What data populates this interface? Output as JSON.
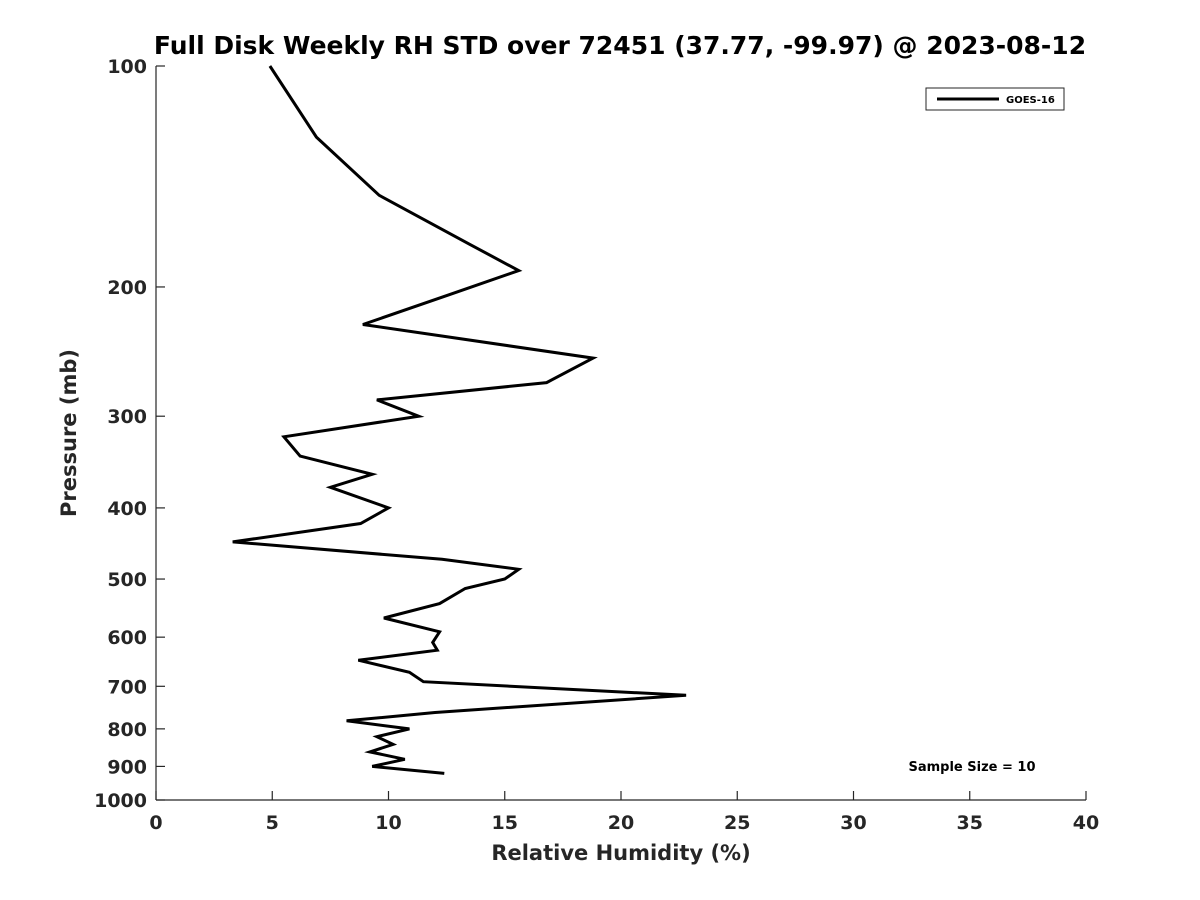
{
  "chart_data": {
    "type": "line",
    "title": "Full Disk Weekly RH STD over 72451 (37.77, -99.97) @ 2023-08-12",
    "xlabel": "Relative Humidity (%)",
    "ylabel": "Pressure (mb)",
    "xlim": [
      0,
      40
    ],
    "ylim": [
      100,
      1000
    ],
    "yscale": "log",
    "y_reversed": true,
    "grid": false,
    "legend_position": "top-right",
    "x_ticks": [
      "0",
      "5",
      "10",
      "15",
      "20",
      "25",
      "30",
      "35",
      "40"
    ],
    "y_ticks": [
      "100",
      "200",
      "300",
      "400",
      "500",
      "600",
      "700",
      "800",
      "900",
      "1000"
    ],
    "annotation": "Sample Size = 10",
    "series": [
      {
        "name": "GOES-16",
        "color": "#000000",
        "points": [
          [
            4.9,
            100
          ],
          [
            6.9,
            125
          ],
          [
            9.6,
            150
          ],
          [
            13.5,
            175
          ],
          [
            15.6,
            190
          ],
          [
            12.6,
            205
          ],
          [
            8.9,
            225
          ],
          [
            18.8,
            250
          ],
          [
            16.8,
            270
          ],
          [
            9.5,
            285
          ],
          [
            11.3,
            300
          ],
          [
            5.5,
            320
          ],
          [
            6.2,
            340
          ],
          [
            9.3,
            360
          ],
          [
            7.5,
            375
          ],
          [
            10.0,
            400
          ],
          [
            8.8,
            420
          ],
          [
            3.3,
            445
          ],
          [
            12.3,
            470
          ],
          [
            15.6,
            485
          ],
          [
            15.0,
            500
          ],
          [
            13.3,
            515
          ],
          [
            12.2,
            540
          ],
          [
            9.8,
            565
          ],
          [
            12.2,
            590
          ],
          [
            11.9,
            610
          ],
          [
            12.1,
            625
          ],
          [
            8.7,
            645
          ],
          [
            10.9,
            670
          ],
          [
            11.5,
            690
          ],
          [
            22.8,
            720
          ],
          [
            12.0,
            760
          ],
          [
            8.2,
            780
          ],
          [
            10.9,
            800
          ],
          [
            9.5,
            820
          ],
          [
            10.2,
            840
          ],
          [
            9.2,
            860
          ],
          [
            10.7,
            880
          ],
          [
            9.3,
            900
          ],
          [
            12.4,
            920
          ]
        ]
      }
    ]
  }
}
